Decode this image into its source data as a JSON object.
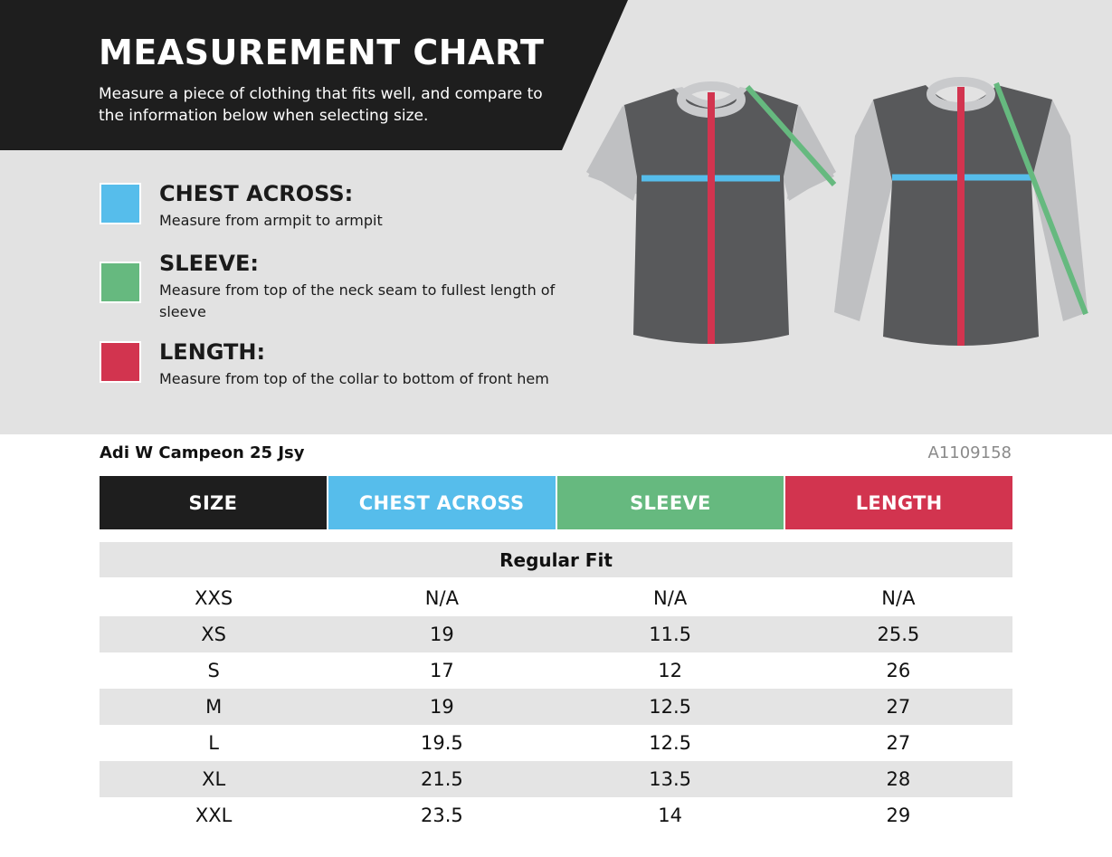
{
  "header": {
    "title": "MEASUREMENT CHART",
    "subtitle": "Measure a piece of clothing that fits well, and compare to the information below when selecting size."
  },
  "legend": [
    {
      "title": "CHEST ACROSS:",
      "description": "Measure from armpit to armpit",
      "color": "#56bdeb"
    },
    {
      "title": "SLEEVE:",
      "description": "Measure from top of the neck seam to fullest length of sleeve",
      "color": "#66b97f"
    },
    {
      "title": "LENGTH:",
      "description": "Measure from top of the collar to bottom of front hem",
      "color": "#d2344f"
    }
  ],
  "product": {
    "name": "Adi W Campeon 25 Jsy",
    "code": "A1109158"
  },
  "table": {
    "columns": [
      {
        "label": "SIZE",
        "color": "#1e1e1e"
      },
      {
        "label": "CHEST ACROSS",
        "color": "#56bdeb"
      },
      {
        "label": "SLEEVE",
        "color": "#66b97f"
      },
      {
        "label": "LENGTH",
        "color": "#d2344f"
      }
    ],
    "fit_label": "Regular Fit",
    "rows": [
      [
        "XXS",
        "N/A",
        "N/A",
        "N/A"
      ],
      [
        "XS",
        "19",
        "11.5",
        "25.5"
      ],
      [
        "S",
        "17",
        "12",
        "26"
      ],
      [
        "M",
        "19",
        "12.5",
        "27"
      ],
      [
        "L",
        "19.5",
        "12.5",
        "27"
      ],
      [
        "XL",
        "21.5",
        "13.5",
        "28"
      ],
      [
        "XXL",
        "23.5",
        "14",
        "29"
      ]
    ]
  },
  "icons": {
    "short_sleeve": "short-sleeve-shirt-icon",
    "long_sleeve": "long-sleeve-shirt-icon"
  },
  "colors": {
    "banner": "#1e1e1e",
    "panel": "#e2e2e2",
    "shirt_body": "#58595b",
    "shirt_sleeve": "#bfc0c2"
  }
}
